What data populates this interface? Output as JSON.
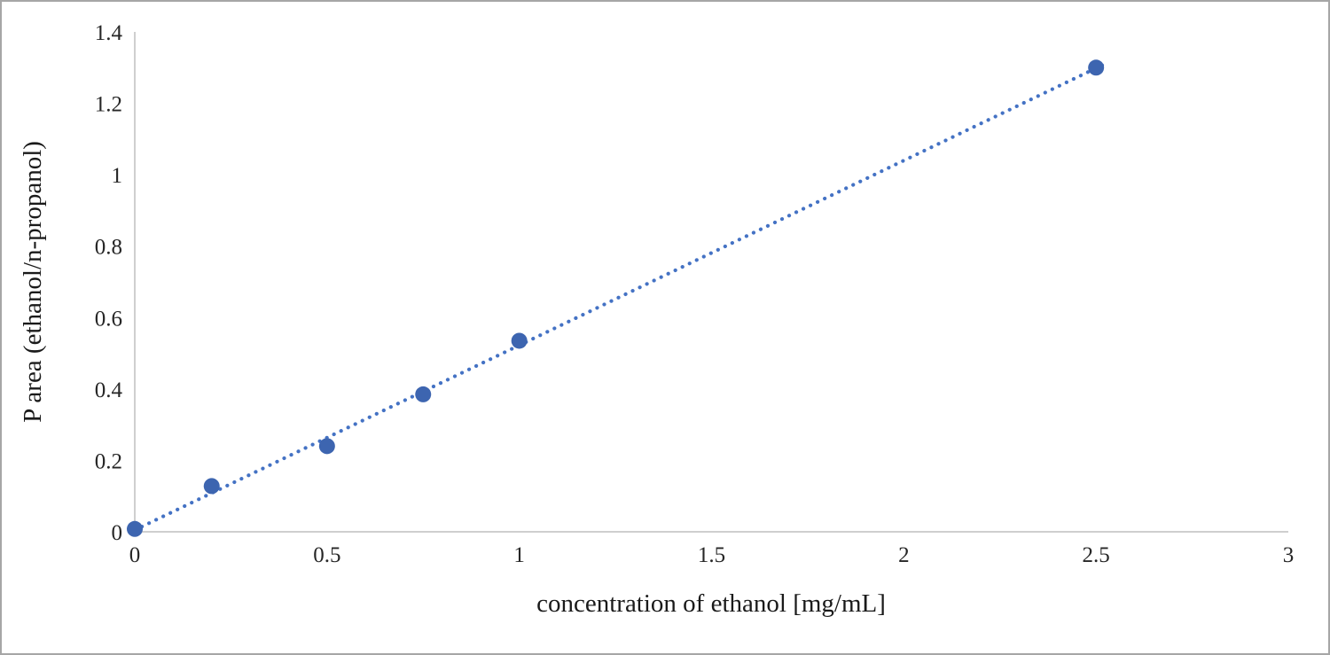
{
  "chart_data": {
    "type": "scatter",
    "title": "",
    "xlabel": "concentration of ethanol [mg/mL]",
    "ylabel": "P area (ethanol/n-propanol)",
    "xlim": [
      0,
      3
    ],
    "ylim": [
      0,
      1.4
    ],
    "grid": false,
    "legend_position": "none",
    "x_ticks": [
      {
        "v": 0,
        "label": "0"
      },
      {
        "v": 0.5,
        "label": "0.5"
      },
      {
        "v": 1,
        "label": "1"
      },
      {
        "v": 1.5,
        "label": "1.5"
      },
      {
        "v": 2,
        "label": "2"
      },
      {
        "v": 2.5,
        "label": "2.5"
      },
      {
        "v": 3,
        "label": "3"
      }
    ],
    "y_ticks": [
      {
        "v": 0,
        "label": "0"
      },
      {
        "v": 0.2,
        "label": "0.2"
      },
      {
        "v": 0.4,
        "label": "0.4"
      },
      {
        "v": 0.6,
        "label": "0.6"
      },
      {
        "v": 0.8,
        "label": "0.8"
      },
      {
        "v": 1,
        "label": "1"
      },
      {
        "v": 1.2,
        "label": "1.2"
      },
      {
        "v": 1.4,
        "label": "1.4"
      }
    ],
    "points": [
      [
        0,
        0.008
      ],
      [
        0.2,
        0.128
      ],
      [
        0.5,
        0.24
      ],
      [
        0.75,
        0.385
      ],
      [
        1,
        0.535
      ],
      [
        2.5,
        1.3
      ]
    ],
    "trendline": {
      "style": "dotted",
      "x1": 0,
      "y1": 0.005,
      "x2": 2.53,
      "y2": 1.314
    },
    "marker_color": "#3d65b0",
    "line_color": "#4472c4",
    "axis_line_color": "#bfbfbf",
    "tick_label_color": "#262626",
    "frame_border_color": "#a6a6a6",
    "background_color": "#ffffff"
  }
}
